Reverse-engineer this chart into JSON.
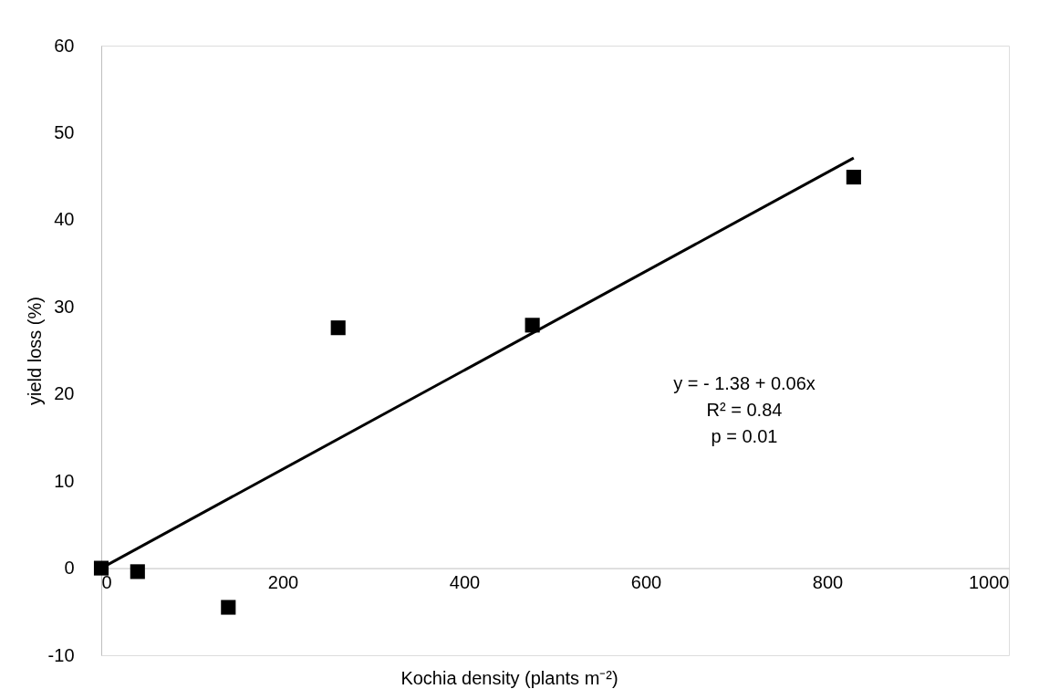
{
  "chart_data": {
    "type": "scatter",
    "xlabel": "Kochia density (plants m⁻²)",
    "ylabel": "yield loss (%)",
    "xlim": [
      0,
      1000
    ],
    "xticks": [
      0,
      200,
      400,
      600,
      800,
      1000
    ],
    "ylim": [
      -10,
      60
    ],
    "yticks": [
      -10,
      0,
      10,
      20,
      30,
      40,
      50,
      60
    ],
    "grid": false,
    "series": [
      {
        "marker": "square",
        "color": "#000000",
        "x": [
          0,
          40,
          140,
          261,
          475,
          829
        ],
        "values": [
          0,
          -0.4,
          -4.5,
          27.6,
          27.9,
          44.9
        ]
      },
      {
        "type": "line",
        "color": "#000000",
        "line_style": "solid",
        "x": [
          0,
          829
        ],
        "values": [
          0,
          47.1
        ]
      }
    ],
    "annotations": [
      "y = - 1.38 + 0.06x",
      "R² = 0.84",
      "p = 0.01"
    ]
  }
}
